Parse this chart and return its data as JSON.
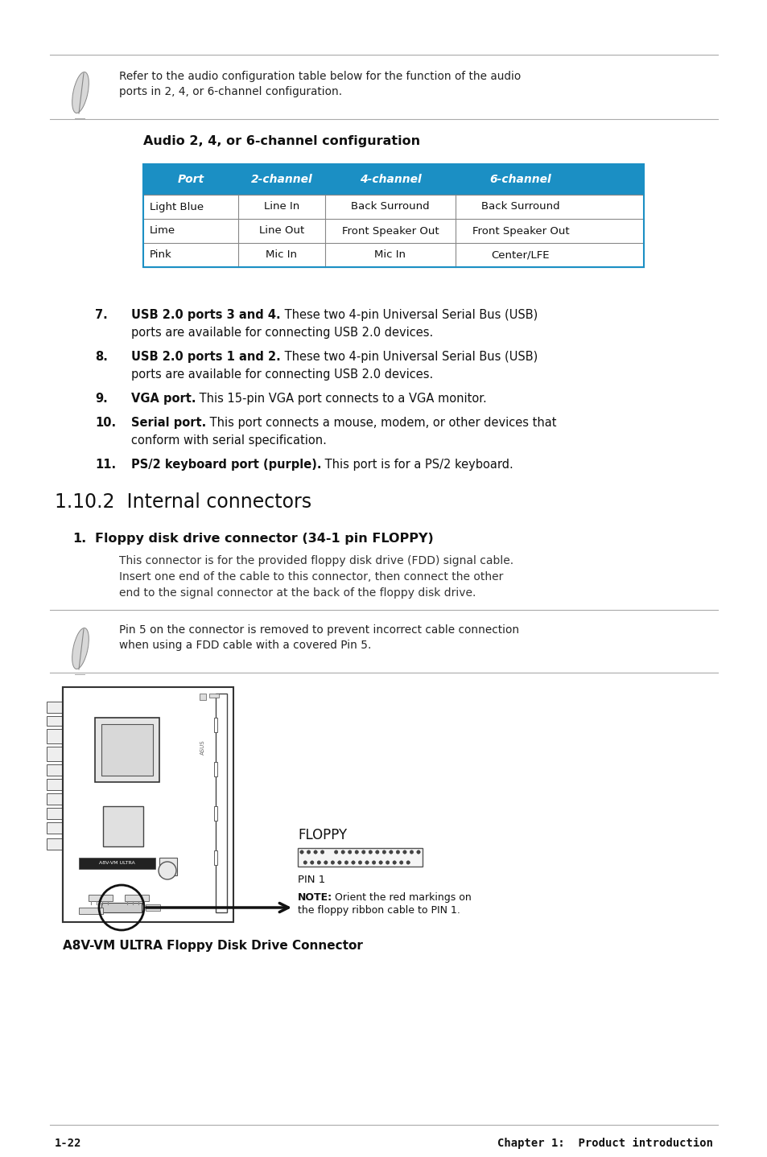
{
  "bg_color": "#ffffff",
  "note1_text_line1": "Refer to the audio configuration table below for the function of the audio",
  "note1_text_line2": "ports in 2, 4, or 6-channel configuration.",
  "table_title": "Audio 2, 4, or 6-channel configuration",
  "table_header": [
    "Port",
    "2-channel",
    "4-channel",
    "6-channel"
  ],
  "table_header_bg": "#1b8fc4",
  "table_header_color": "#ffffff",
  "table_rows": [
    [
      "Light Blue",
      "Line In",
      "Back Surround",
      "Back Surround"
    ],
    [
      "Lime",
      "Line Out",
      "Front Speaker Out",
      "Front Speaker Out"
    ],
    [
      "Pink",
      "Mic In",
      "Mic In",
      "Center/LFE"
    ]
  ],
  "items": [
    {
      "num": "7.",
      "bold": "USB 2.0 ports 3 and 4.",
      "text": " These two 4-pin Universal Serial Bus (USB)",
      "line2": "ports are available for connecting USB 2.0 devices."
    },
    {
      "num": "8.",
      "bold": "USB 2.0 ports 1 and 2.",
      "text": " These two 4-pin Universal Serial Bus (USB)",
      "line2": "ports are available for connecting USB 2.0 devices."
    },
    {
      "num": "9.",
      "bold": "VGA port.",
      "text": " This 15-pin VGA port connects to a VGA monitor.",
      "line2": ""
    },
    {
      "num": "10.",
      "bold": "Serial port.",
      "text": " This port connects a mouse, modem, or other devices that",
      "line2": "conform with serial specification."
    },
    {
      "num": "11.",
      "bold": "PS/2 keyboard port (purple).",
      "text": " This port is for a PS/2 keyboard.",
      "line2": ""
    }
  ],
  "section_title": "1.10.2  Internal connectors",
  "sub_num": "1.",
  "sub_bold": "Floppy disk drive connector (34-1 pin FLOPPY)",
  "sub_body_line1": "This connector is for the provided floppy disk drive (FDD) signal cable.",
  "sub_body_line2": "Insert one end of the cable to this connector, then connect the other",
  "sub_body_line3": "end to the signal connector at the back of the floppy disk drive.",
  "note2_line1": "Pin 5 on the connector is removed to prevent incorrect cable connection",
  "note2_line2": "when using a FDD cable with a covered Pin 5.",
  "floppy_label": "FLOPPY",
  "pin_label": "PIN 1",
  "note_bold": "NOTE:",
  "note_normal1": " Orient the red markings on",
  "note_normal2": "the floppy ribbon cable to PIN 1.",
  "board_caption": "A8V-VM ULTRA Floppy Disk Drive Connector",
  "footer_left": "1-22",
  "footer_right": "Chapter 1:  Product introduction"
}
